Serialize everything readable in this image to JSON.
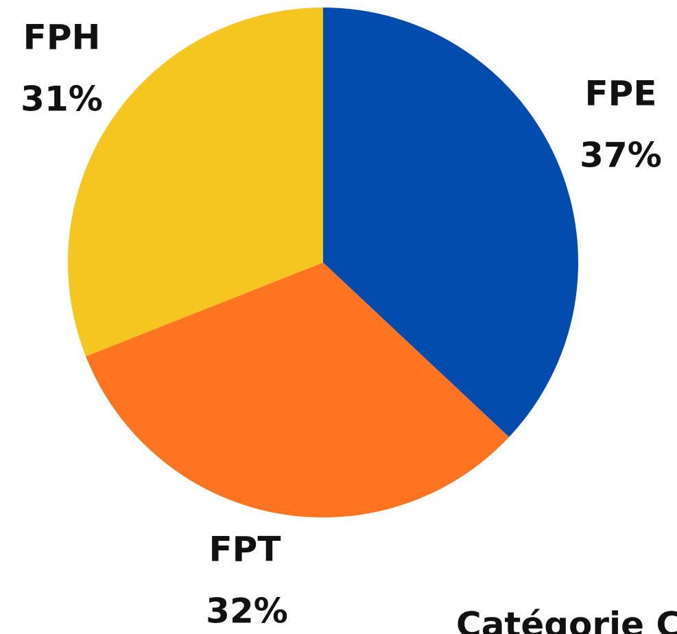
{
  "chart_data": {
    "type": "pie",
    "categories": [
      "FPE",
      "FPT",
      "FPH"
    ],
    "values": [
      37,
      32,
      31
    ],
    "value_labels": [
      "37%",
      "32%",
      "31%"
    ],
    "colors": [
      "#014cac",
      "#fe7420",
      "#f5c61f"
    ],
    "annotation": "Catégorie C"
  }
}
